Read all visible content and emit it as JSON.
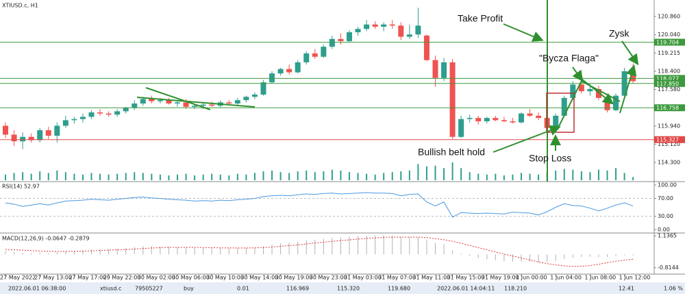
{
  "chart_data": [
    {
      "type": "candlestick",
      "title": "XTIUSD.c, H1",
      "categories": [
        "27 May 2022",
        null,
        null,
        null,
        "27 May 13:00",
        null,
        null,
        null,
        "27 May 17:00",
        null,
        null,
        null,
        "29 May 22:00",
        null,
        null,
        null,
        "30 May 02:00",
        null,
        null,
        null,
        "30 May 06:00",
        null,
        null,
        null,
        "30 May 10:00",
        null,
        null,
        null,
        "30 May 14:00",
        null,
        null,
        null,
        "30 May 19:00",
        null,
        null,
        null,
        "30 May 23:00",
        null,
        null,
        null,
        "31 May 03:00",
        null,
        null,
        null,
        "31 May 07:00",
        null,
        null,
        null,
        "31 May 11:00",
        null,
        null,
        null,
        "31 May 15:00",
        null,
        null,
        null,
        "31 May 19:00",
        null,
        null,
        null,
        "1 Jun 00:00",
        null,
        null,
        null,
        "1 Jun 04:00",
        null,
        null,
        null,
        "1 Jun 08:00",
        null,
        null,
        null,
        "1 Jun 12:00",
        null
      ],
      "ohlc": [
        [
          115.95,
          116.1,
          115.4,
          115.55
        ],
        [
          115.55,
          115.75,
          115.05,
          115.25
        ],
        [
          115.25,
          115.65,
          114.9,
          115.45
        ],
        [
          115.45,
          115.6,
          115.2,
          115.3
        ],
        [
          115.3,
          115.85,
          115.2,
          115.75
        ],
        [
          115.75,
          115.9,
          115.35,
          115.5
        ],
        [
          115.5,
          116.1,
          115.2,
          115.95
        ],
        [
          115.95,
          116.4,
          115.85,
          116.2
        ],
        [
          116.2,
          116.35,
          116.05,
          116.25
        ],
        [
          116.25,
          116.5,
          116.1,
          116.35
        ],
        [
          116.35,
          116.65,
          116.25,
          116.55
        ],
        [
          116.55,
          116.7,
          116.4,
          116.5
        ],
        [
          116.5,
          116.6,
          116.35,
          116.45
        ],
        [
          116.45,
          116.7,
          116.35,
          116.6
        ],
        [
          116.6,
          116.8,
          116.5,
          116.75
        ],
        [
          116.75,
          117.1,
          116.65,
          116.95
        ],
        [
          116.95,
          117.25,
          116.85,
          117.15
        ],
        [
          117.15,
          117.3,
          116.95,
          117.05
        ],
        [
          117.05,
          117.2,
          116.95,
          117.1
        ],
        [
          117.1,
          117.2,
          116.9,
          116.95
        ],
        [
          116.95,
          117.1,
          116.8,
          117.0
        ],
        [
          117.0,
          117.15,
          116.7,
          116.8
        ],
        [
          116.8,
          116.95,
          116.7,
          116.85
        ],
        [
          116.85,
          117.0,
          116.7,
          116.9
        ],
        [
          116.9,
          117.05,
          116.8,
          116.85
        ],
        [
          116.85,
          117.1,
          116.75,
          117.0
        ],
        [
          117.0,
          117.1,
          116.9,
          116.95
        ],
        [
          116.95,
          117.2,
          116.85,
          117.1
        ],
        [
          117.1,
          117.3,
          117.0,
          117.25
        ],
        [
          117.25,
          117.45,
          117.15,
          117.35
        ],
        [
          117.35,
          118.0,
          117.3,
          117.9
        ],
        [
          117.9,
          118.4,
          117.85,
          118.3
        ],
        [
          118.3,
          118.55,
          118.2,
          118.5
        ],
        [
          118.5,
          118.7,
          118.25,
          118.35
        ],
        [
          118.35,
          118.9,
          118.3,
          118.8
        ],
        [
          118.8,
          119.3,
          118.7,
          119.2
        ],
        [
          119.2,
          119.4,
          118.95,
          119.05
        ],
        [
          119.05,
          119.6,
          119.0,
          119.5
        ],
        [
          119.5,
          120.0,
          119.4,
          119.85
        ],
        [
          119.85,
          120.1,
          119.6,
          119.75
        ],
        [
          119.75,
          120.25,
          119.7,
          120.15
        ],
        [
          120.15,
          120.4,
          120.0,
          120.3
        ],
        [
          120.3,
          120.7,
          120.2,
          120.5
        ],
        [
          120.5,
          120.65,
          120.3,
          120.4
        ],
        [
          120.4,
          120.6,
          120.2,
          120.5
        ],
        [
          120.5,
          120.7,
          120.3,
          120.45
        ],
        [
          120.45,
          120.6,
          119.8,
          119.95
        ],
        [
          119.95,
          120.5,
          119.85,
          120.05
        ],
        [
          120.05,
          121.25,
          119.9,
          120.45
        ],
        [
          120.0,
          120.05,
          118.85,
          118.9
        ],
        [
          118.9,
          119.1,
          117.7,
          118.1
        ],
        [
          118.1,
          119.0,
          117.95,
          118.8
        ],
        [
          118.8,
          118.95,
          115.35,
          115.45
        ],
        [
          115.45,
          116.4,
          115.4,
          116.25
        ],
        [
          116.25,
          116.45,
          116.1,
          116.3
        ],
        [
          116.3,
          116.4,
          116.0,
          116.15
        ],
        [
          116.15,
          116.35,
          116.05,
          116.3
        ],
        [
          116.3,
          116.4,
          116.15,
          116.2
        ],
        [
          116.2,
          116.35,
          116.1,
          116.15
        ],
        [
          116.15,
          116.3,
          116.05,
          116.1
        ],
        [
          116.1,
          116.55,
          116.05,
          116.5
        ],
        [
          116.5,
          116.7,
          116.35,
          116.4
        ],
        [
          116.4,
          116.55,
          116.2,
          116.3
        ],
        [
          116.3,
          116.4,
          115.8,
          115.85
        ],
        [
          115.85,
          116.5,
          115.8,
          116.4
        ],
        [
          116.4,
          117.3,
          116.35,
          117.2
        ],
        [
          117.2,
          117.95,
          117.1,
          117.8
        ],
        [
          117.8,
          118.05,
          117.4,
          117.5
        ],
        [
          117.5,
          117.85,
          117.3,
          117.6
        ],
        [
          117.6,
          117.75,
          117.1,
          117.2
        ],
        [
          117.2,
          117.4,
          116.55,
          116.65
        ],
        [
          116.65,
          117.4,
          116.6,
          117.3
        ],
        [
          117.3,
          118.55,
          117.2,
          118.4
        ],
        [
          118.4,
          118.75,
          117.85,
          117.95
        ]
      ],
      "volume": [
        14,
        18,
        20,
        16,
        22,
        18,
        24,
        20,
        16,
        14,
        18,
        16,
        14,
        16,
        18,
        20,
        18,
        16,
        14,
        12,
        14,
        16,
        12,
        14,
        16,
        14,
        12,
        16,
        14,
        18,
        22,
        24,
        20,
        18,
        22,
        24,
        20,
        22,
        26,
        24,
        20,
        18,
        16,
        14,
        18,
        20,
        22,
        24,
        40,
        34,
        36,
        30,
        44,
        30,
        20,
        16,
        14,
        16,
        12,
        14,
        18,
        16,
        14,
        18,
        24,
        28,
        26,
        22,
        20,
        26,
        24,
        30,
        18,
        8
      ],
      "up_color": "#2e9e8e",
      "down_color": "#ef5350",
      "volume_color": "#2e9e8e",
      "ylim": [
        113.44,
        121.6
      ],
      "yticks": [
        {
          "value": 120.86,
          "label": "120.860"
        },
        {
          "value": 120.04,
          "label": "120.040"
        },
        119.215,
        {
          "value": 118.4,
          "label": "118.400"
        },
        {
          "value": 117.58,
          "label": "117.580"
        },
        {
          "value": 115.94,
          "label": "115.940"
        },
        {
          "value": 115.12,
          "label": "115.120"
        },
        {
          "value": 114.3,
          "label": "114.300"
        }
      ],
      "levels": [
        {
          "value": 119.704,
          "color": "#3c9a3c"
        },
        {
          "value": 118.077,
          "color": "#3c9a3c"
        },
        {
          "value": 117.85,
          "label": "117.850",
          "color": "#3c9a3c"
        },
        {
          "value": 116.758,
          "color": "#3c9a3c"
        },
        {
          "value": 115.327,
          "color": "#e04848"
        }
      ],
      "annotations": [
        "Take Profit",
        "\"Bycza Flaga\"",
        "Zysk",
        "Bullish belt hold",
        "Stop Loss"
      ]
    },
    {
      "type": "line",
      "title": "RSI(14) 52.97",
      "color": "#4a98e0",
      "values": [
        60,
        57,
        52,
        55,
        58,
        55,
        60,
        64,
        65,
        66,
        68,
        67,
        66,
        68,
        70,
        72,
        73,
        71,
        70,
        68,
        67,
        66,
        64,
        65,
        64,
        66,
        65,
        67,
        68,
        70,
        74,
        76,
        77,
        76,
        78,
        80,
        79,
        81,
        82,
        80,
        81,
        82,
        83,
        82,
        82,
        81,
        76,
        79,
        80,
        62,
        53,
        62,
        28,
        38,
        37,
        36,
        37,
        36,
        35,
        39,
        38,
        37,
        33,
        40,
        50,
        58,
        54,
        53,
        48,
        42,
        48,
        55,
        60,
        53
      ],
      "ylim": [
        -7.7,
        107.7
      ],
      "yticks": [
        {
          "value": 100,
          "label": "100.00"
        },
        {
          "value": 70,
          "label": "70.00"
        },
        {
          "value": 30,
          "label": "30.00"
        },
        {
          "value": 0,
          "label": "0.00"
        }
      ]
    },
    {
      "type": "macd",
      "title": "MACD(12,26,9) -0.0647 -0.2879",
      "color": "#b0b0b0",
      "signal_color": "#e03030",
      "values": [
        0.2,
        0.15,
        0.1,
        0.08,
        0.1,
        0.08,
        0.12,
        0.18,
        0.22,
        0.26,
        0.3,
        0.32,
        0.33,
        0.36,
        0.4,
        0.45,
        0.5,
        0.5,
        0.5,
        0.48,
        0.45,
        0.42,
        0.4,
        0.39,
        0.38,
        0.38,
        0.37,
        0.38,
        0.4,
        0.42,
        0.5,
        0.6,
        0.68,
        0.72,
        0.78,
        0.86,
        0.9,
        0.96,
        1.02,
        1.04,
        1.08,
        1.12,
        1.15,
        1.16,
        1.17,
        1.16,
        1.06,
        1.06,
        1.04,
        0.9,
        0.7,
        0.62,
        0.25,
        0.05,
        -0.1,
        -0.22,
        -0.3,
        -0.36,
        -0.42,
        -0.44,
        -0.44,
        -0.45,
        -0.5,
        -0.48,
        -0.4,
        -0.28,
        -0.2,
        -0.15,
        -0.14,
        -0.18,
        -0.16,
        -0.1,
        -0.05,
        -0.0647
      ],
      "signal": [
        0.3,
        0.28,
        0.26,
        0.23,
        0.21,
        0.19,
        0.18,
        0.18,
        0.19,
        0.2,
        0.22,
        0.24,
        0.26,
        0.28,
        0.3,
        0.33,
        0.36,
        0.39,
        0.41,
        0.43,
        0.43,
        0.43,
        0.43,
        0.42,
        0.41,
        0.4,
        0.4,
        0.39,
        0.39,
        0.4,
        0.42,
        0.45,
        0.5,
        0.54,
        0.59,
        0.64,
        0.7,
        0.75,
        0.8,
        0.85,
        0.89,
        0.94,
        0.98,
        1.01,
        1.04,
        1.06,
        1.06,
        1.06,
        1.06,
        1.03,
        0.97,
        0.9,
        0.8,
        0.68,
        0.55,
        0.42,
        0.28,
        0.15,
        0.02,
        -0.1,
        -0.22,
        -0.34,
        -0.46,
        -0.56,
        -0.64,
        -0.7,
        -0.73,
        -0.72,
        -0.68,
        -0.6,
        -0.5,
        -0.42,
        -0.35,
        -0.2879
      ],
      "ylim": [
        -1.205,
        1.309
      ],
      "yticks": [
        1.1365,
        -0.8144
      ]
    }
  ],
  "status_row": [
    "2022.06.01 06:38:00",
    "xtiusd.c",
    "79505227",
    "buy",
    "0.01",
    "116.969",
    "115.320",
    "119.680",
    "2022.06.01 14:04:11",
    "118.210",
    "12.41",
    "1.06 %"
  ]
}
